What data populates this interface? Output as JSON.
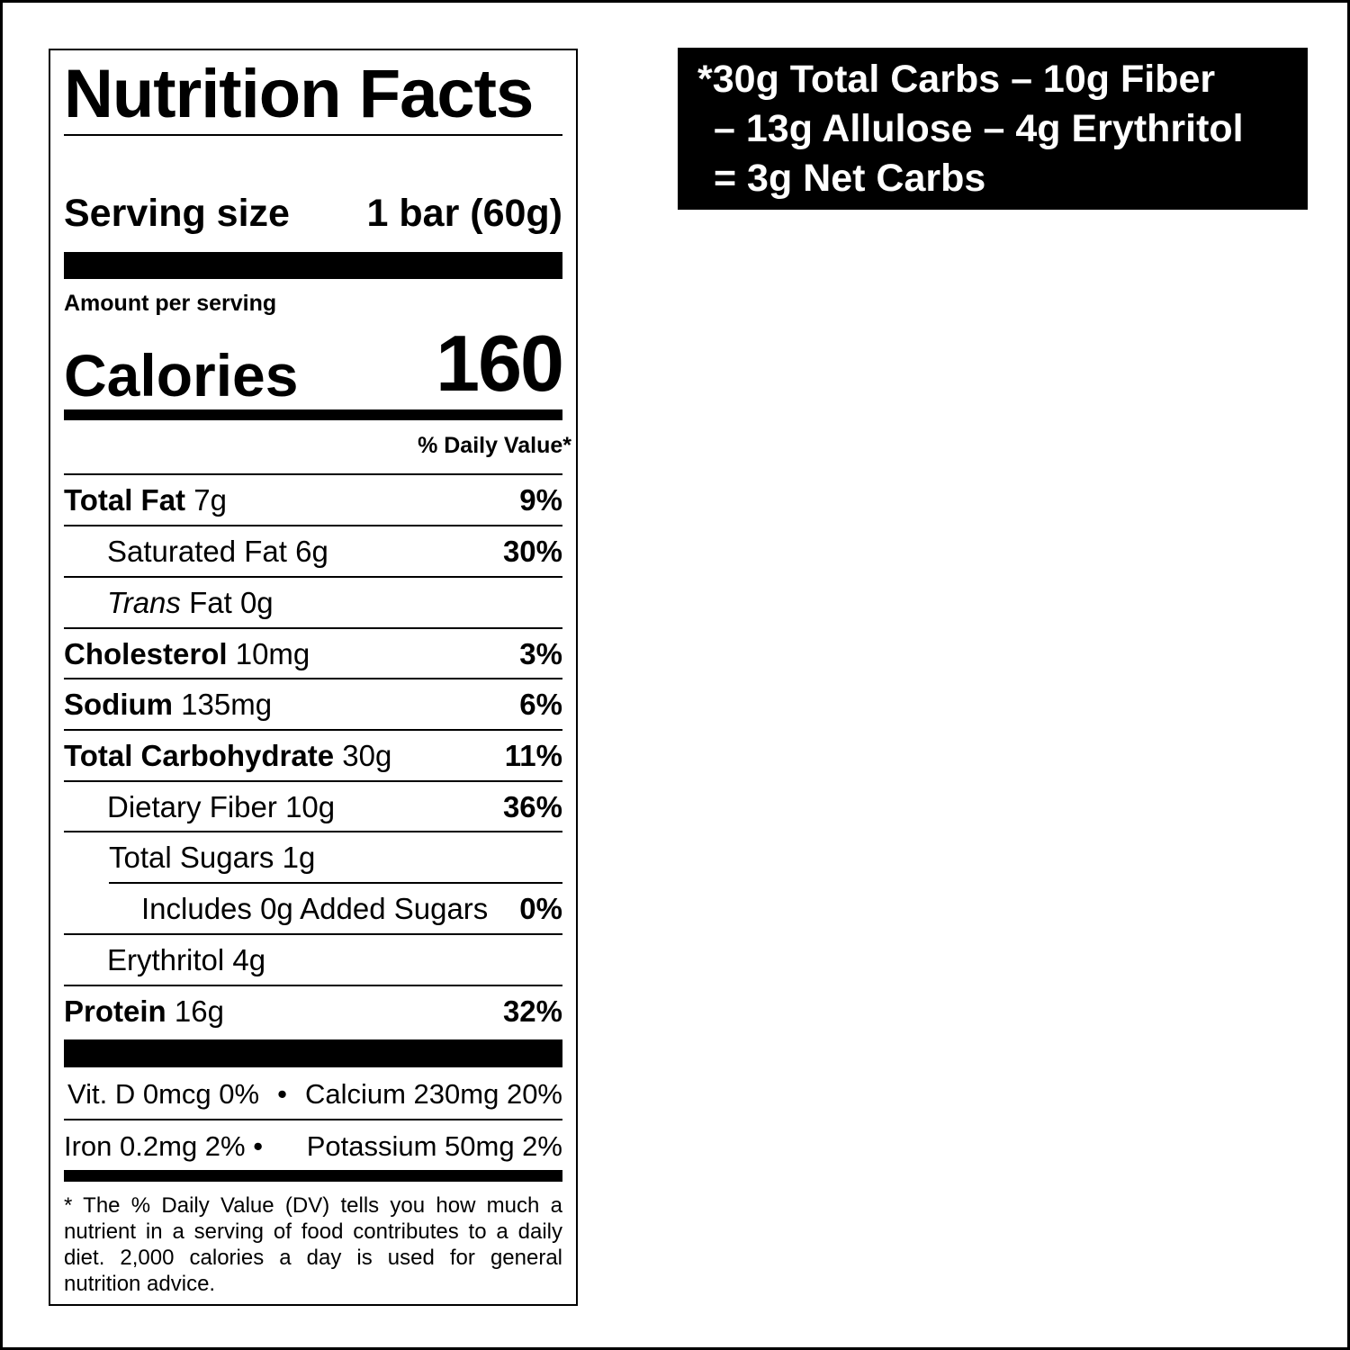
{
  "label": {
    "title": "Nutrition Facts",
    "serving_size_label": "Serving size",
    "serving_size_value": "1 bar (60g)",
    "amount_per_serving": "Amount per serving",
    "calories_label": "Calories",
    "calories_value": "160",
    "dv_header": "% Daily Value*",
    "rows": [
      {
        "name": "Total Fat",
        "amount": "7g",
        "dv": "9%"
      },
      {
        "name": "Saturated Fat",
        "amount": "6g",
        "dv": "30%"
      },
      {
        "name": "Trans",
        "name2": "Fat",
        "amount": "0g",
        "dv": ""
      },
      {
        "name": "Cholesterol",
        "amount": "10mg",
        "dv": "3%"
      },
      {
        "name": "Sodium",
        "amount": "135mg",
        "dv": "6%"
      },
      {
        "name": "Total Carbohydrate",
        "amount": "30g",
        "dv": "11%"
      },
      {
        "name": "Dietary Fiber",
        "amount": "10g",
        "dv": "36%"
      },
      {
        "name": "Total Sugars",
        "amount": "1g",
        "dv": ""
      },
      {
        "name": "Includes 0g Added Sugars",
        "amount": "",
        "dv": "0%"
      },
      {
        "name": "Erythritol",
        "amount": "4g",
        "dv": ""
      },
      {
        "name": "Protein",
        "amount": "16g",
        "dv": "32%"
      }
    ],
    "vitamins": [
      {
        "left": "Vit. D 0mcg 0%",
        "right": "Calcium 230mg 20%"
      },
      {
        "left": "Iron 0.2mg 2%",
        "right": "Potassium 50mg 2%"
      }
    ],
    "bullet": "•",
    "footnote": "* The % Daily Value (DV) tells you how much a nutrient in a serving of food contributes to a daily diet. 2,000 calories a day is used for general nutrition advice."
  },
  "net_carbs": {
    "line1": "*30g Total Carbs – 10g Fiber",
    "line2": "– 13g Allulose – 4g Erythritol",
    "line3": "= 3g Net Carbs"
  }
}
